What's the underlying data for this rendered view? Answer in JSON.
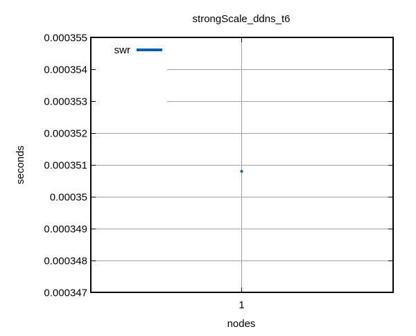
{
  "chart_data": {
    "type": "line",
    "title": "strongScale_ddns_t6",
    "xlabel": "nodes",
    "ylabel": "seconds",
    "categories": [
      "1"
    ],
    "ylim": [
      0.000347,
      0.000355
    ],
    "yticks": [
      "0.000347",
      "0.000348",
      "0.000349",
      "0.00035",
      "0.000351",
      "0.000352",
      "0.000353",
      "0.000354",
      "0.000355"
    ],
    "grid": true,
    "legend_position": "top-left",
    "series": [
      {
        "name": "swr",
        "color": "#0060ad",
        "values": [
          0.0003508
        ]
      }
    ]
  }
}
